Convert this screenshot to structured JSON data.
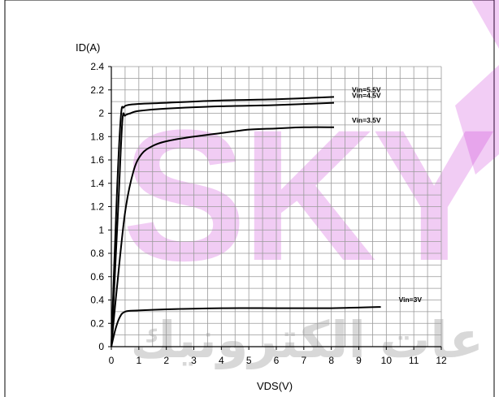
{
  "watermark": {
    "latin": "SKY",
    "arabic": "عات الكترونيك",
    "color": "#c41bd0"
  },
  "chart_data": {
    "type": "line",
    "title": "",
    "xlabel": "VDS(V)",
    "ylabel": "ID(A)",
    "xlim": [
      0,
      12
    ],
    "ylim": [
      0,
      2.4
    ],
    "x_ticks": [
      "0",
      "1",
      "2",
      "3",
      "4",
      "5",
      "6",
      "7",
      "8",
      "9",
      "10",
      "11",
      "12"
    ],
    "y_ticks": [
      "0",
      "0.2",
      "0.4",
      "0.6",
      "0.8",
      "1",
      "1.2",
      "1.4",
      "1.6",
      "1.8",
      "2",
      "2.2",
      "2.4"
    ],
    "x_tick_values": [
      0,
      1,
      2,
      3,
      4,
      5,
      6,
      7,
      8,
      9,
      10,
      11,
      12
    ],
    "y_tick_values": [
      0,
      0.2,
      0.4,
      0.6,
      0.8,
      1,
      1.2,
      1.4,
      1.6,
      1.8,
      2,
      2.2,
      2.4
    ],
    "grid": true,
    "series": [
      {
        "name": "Vin=5.5V",
        "x": [
          0,
          0.2,
          0.35,
          0.45,
          0.6,
          1,
          2,
          4,
          6,
          8.1
        ],
        "y": [
          0,
          1.3,
          1.98,
          2.05,
          2.07,
          2.08,
          2.09,
          2.11,
          2.12,
          2.14
        ]
      },
      {
        "name": "Vin=4.5V",
        "x": [
          0,
          0.25,
          0.4,
          0.5,
          0.7,
          1,
          2,
          4,
          6,
          8.1
        ],
        "y": [
          0,
          1.2,
          1.93,
          1.98,
          2.0,
          2.02,
          2.04,
          2.06,
          2.07,
          2.09
        ]
      },
      {
        "name": "Vin=3.5V",
        "x": [
          0,
          0.2,
          0.5,
          0.8,
          1.1,
          1.5,
          2,
          3,
          4,
          5,
          6,
          7,
          8.1
        ],
        "y": [
          0,
          0.5,
          1.15,
          1.5,
          1.65,
          1.72,
          1.76,
          1.8,
          1.83,
          1.86,
          1.87,
          1.88,
          1.88
        ]
      },
      {
        "name": "Vin=3V",
        "x": [
          0,
          0.15,
          0.3,
          0.5,
          1,
          2,
          4,
          6,
          8,
          9.8
        ],
        "y": [
          0,
          0.15,
          0.25,
          0.3,
          0.31,
          0.32,
          0.33,
          0.33,
          0.33,
          0.34
        ]
      }
    ]
  }
}
